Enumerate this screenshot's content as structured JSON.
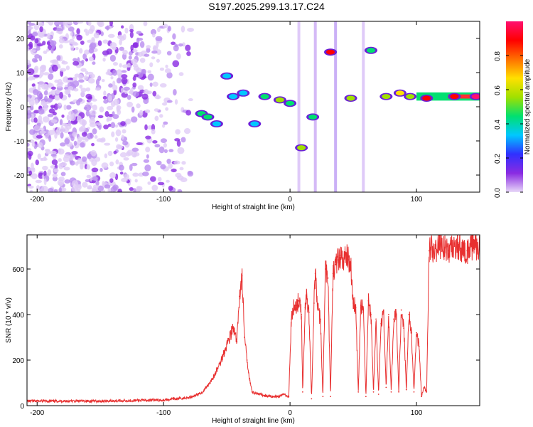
{
  "title": "S197.2025.299.13.17.C24",
  "chart_data": [
    {
      "type": "heatmap",
      "xlabel": "Height of straight line (km)",
      "ylabel": "Frequency (Hz)",
      "xlim": [
        -208,
        150
      ],
      "ylim": [
        -25,
        25
      ],
      "xticks": [
        -200,
        -100,
        0,
        100
      ],
      "yticks": [
        -20,
        -10,
        0,
        10,
        20
      ],
      "colorbar": {
        "label": "Normalized spectral amplitude",
        "range": [
          0,
          1
        ],
        "ticks": [
          0.0,
          0.2,
          0.4,
          0.6,
          0.8
        ],
        "colors": [
          "#e8d8f8",
          "#8a2be2",
          "#3030ff",
          "#00c8ff",
          "#00e070",
          "#a0e000",
          "#ffe000",
          "#ff7000",
          "#ff0000",
          "#ff1070"
        ]
      },
      "features": [
        {
          "x": -70,
          "y": -2,
          "value": 0.45
        },
        {
          "x": -65,
          "y": -3,
          "value": 0.4
        },
        {
          "x": -58,
          "y": -5,
          "value": 0.35
        },
        {
          "x": -50,
          "y": 9,
          "value": 0.3
        },
        {
          "x": -45,
          "y": 3,
          "value": 0.35
        },
        {
          "x": -37,
          "y": 4,
          "value": 0.3
        },
        {
          "x": -28,
          "y": -5,
          "value": 0.3
        },
        {
          "x": -20,
          "y": 3,
          "value": 0.4
        },
        {
          "x": -8,
          "y": 2,
          "value": 0.5
        },
        {
          "x": 0,
          "y": 1,
          "value": 0.45
        },
        {
          "x": 9,
          "y": -12,
          "value": 0.55
        },
        {
          "x": 18,
          "y": -3,
          "value": 0.4
        },
        {
          "x": 32,
          "y": 16,
          "value": 0.85
        },
        {
          "x": 48,
          "y": 2.5,
          "value": 0.6
        },
        {
          "x": 64,
          "y": 16.5,
          "value": 0.45
        },
        {
          "x": 76,
          "y": 3,
          "value": 0.5
        },
        {
          "x": 87,
          "y": 4,
          "value": 0.7
        },
        {
          "x": 95,
          "y": 3,
          "value": 0.55
        },
        {
          "x": 108,
          "y": 2.5,
          "value": 0.9
        },
        {
          "x": 130,
          "y": 3,
          "value": 0.9
        },
        {
          "x": 147,
          "y": 3,
          "value": 0.95
        }
      ]
    },
    {
      "type": "line",
      "xlabel": "Height of straight line (km)",
      "ylabel": "SNR (10 * v/v)",
      "xlim": [
        -208,
        150
      ],
      "ylim": [
        0,
        750
      ],
      "xticks": [
        -200,
        -100,
        0,
        100
      ],
      "yticks": [
        0,
        200,
        400,
        600
      ],
      "color": "#e83030",
      "x": [
        -208,
        -150,
        -100,
        -80,
        -70,
        -65,
        -60,
        -55,
        -50,
        -45,
        -42,
        -40,
        -38,
        -36,
        -34,
        -32,
        -30,
        -25,
        -20,
        -15,
        -10,
        -5,
        -1,
        1,
        3,
        5,
        7,
        9,
        10,
        12,
        13,
        15,
        17,
        19,
        20,
        22,
        24,
        26,
        28,
        30,
        32,
        34,
        36,
        38,
        40,
        42,
        44,
        46,
        48,
        50,
        52,
        54,
        56,
        58,
        60,
        62,
        64,
        66,
        68,
        70,
        72,
        74,
        76,
        78,
        80,
        82,
        84,
        86,
        88,
        90,
        92,
        94,
        96,
        98,
        100,
        102,
        104,
        106,
        108,
        110,
        115,
        120,
        125,
        130,
        135,
        140,
        145,
        150
      ],
      "values": [
        20,
        20,
        25,
        35,
        55,
        90,
        130,
        190,
        270,
        340,
        280,
        480,
        570,
        300,
        200,
        120,
        60,
        50,
        45,
        40,
        40,
        50,
        40,
        380,
        430,
        440,
        460,
        400,
        60,
        430,
        480,
        410,
        30,
        450,
        580,
        420,
        380,
        40,
        600,
        560,
        40,
        580,
        620,
        640,
        660,
        620,
        670,
        640,
        630,
        450,
        430,
        60,
        440,
        420,
        40,
        460,
        400,
        60,
        380,
        50,
        360,
        420,
        80,
        400,
        60,
        380,
        420,
        60,
        420,
        340,
        70,
        400,
        320,
        60,
        320,
        260,
        40,
        80,
        60,
        680,
        690,
        700,
        680,
        700,
        690,
        680,
        700,
        690
      ]
    }
  ]
}
